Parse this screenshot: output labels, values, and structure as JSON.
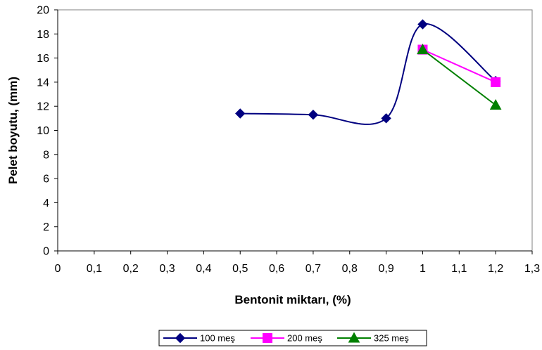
{
  "chart_data": {
    "type": "line",
    "title": "",
    "xlabel": "Bentonit miktarı, (%)",
    "ylabel": "Pelet boyutu, (mm)",
    "xlim": [
      0,
      1.3
    ],
    "ylim": [
      0,
      20
    ],
    "x_ticks": [
      "0",
      "0,1",
      "0,2",
      "0,3",
      "0,4",
      "0,5",
      "0,6",
      "0,7",
      "0,8",
      "0,9",
      "1",
      "1,1",
      "1,2",
      "1,3"
    ],
    "y_ticks": [
      "0",
      "2",
      "4",
      "6",
      "8",
      "10",
      "12",
      "14",
      "16",
      "18",
      "20"
    ],
    "grid": false,
    "legend_position": "bottom",
    "series": [
      {
        "name": "100 meş",
        "color": "#000080",
        "marker": "diamond",
        "smooth": true,
        "x": [
          0.5,
          0.7,
          0.9,
          1.0,
          1.2
        ],
        "y": [
          11.4,
          11.3,
          11.0,
          18.8,
          14.1
        ]
      },
      {
        "name": "200 meş",
        "color": "#FF00FF",
        "marker": "square",
        "smooth": false,
        "x": [
          1.0,
          1.2
        ],
        "y": [
          16.7,
          14.0
        ]
      },
      {
        "name": "325 meş",
        "color": "#008000",
        "marker": "triangle",
        "smooth": false,
        "x": [
          1.0,
          1.2
        ],
        "y": [
          16.7,
          12.1
        ]
      }
    ]
  }
}
